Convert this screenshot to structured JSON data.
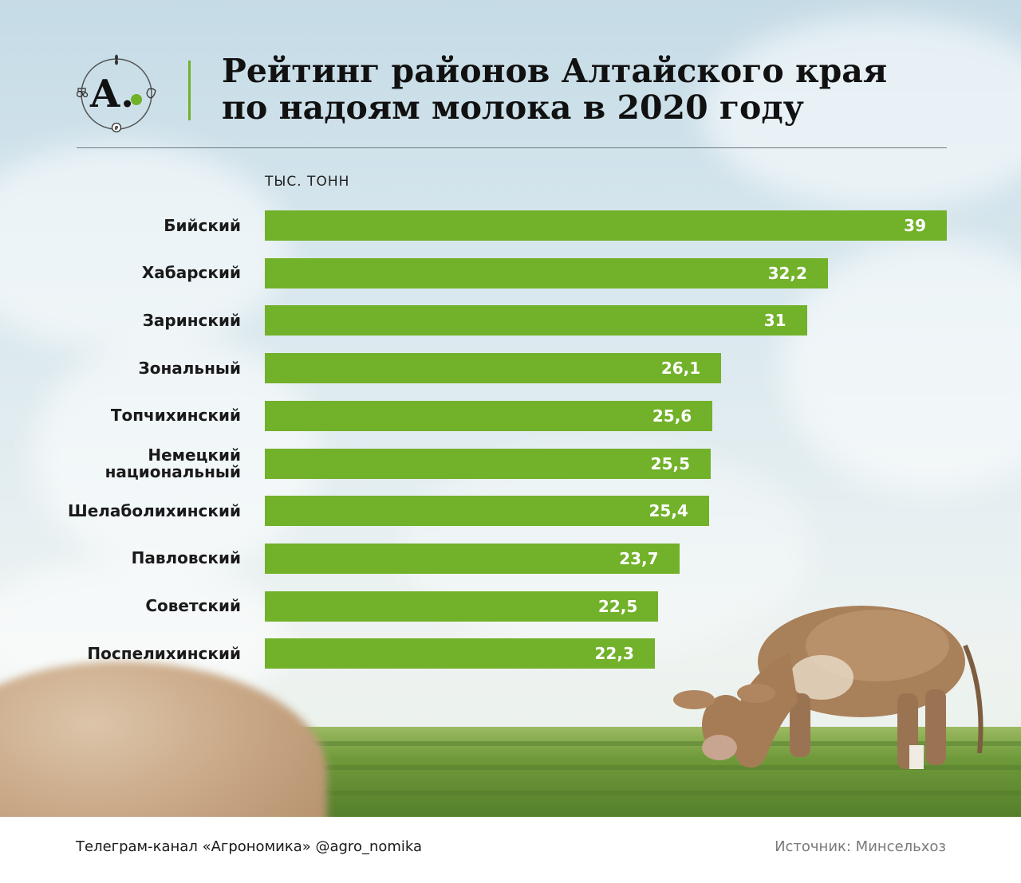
{
  "header": {
    "title_line1": "Рейтинг районов Алтайского края",
    "title_line2": "по надоям молока в 2020 году",
    "logo_letter": "А."
  },
  "chart_data": {
    "type": "bar",
    "orientation": "horizontal",
    "unit_label": "ТЫС. ТОНН",
    "categories": [
      "Бийский",
      "Хабарский",
      "Заринский",
      "Зональный",
      "Топчихинский",
      "Немецкий национальный",
      "Шелаболихинский",
      "Павловский",
      "Советский",
      "Поспелихинский"
    ],
    "values": [
      39,
      32.2,
      31,
      26.1,
      25.6,
      25.5,
      25.4,
      23.7,
      22.5,
      22.3
    ],
    "value_labels": [
      "39",
      "32,2",
      "31",
      "26,1",
      "25,6",
      "25,5",
      "25,4",
      "23,7",
      "22,5",
      "22,3"
    ],
    "xlim": [
      0,
      39
    ],
    "bar_color": "#72b12a"
  },
  "footer": {
    "channel": "Телеграм-канал «Агрономика» @agro_nomika",
    "source": "Источник: Минсельхоз"
  },
  "colors": {
    "accent": "#72b12a",
    "text": "#111111"
  },
  "icons": [
    "logo-emblem-icon",
    "wheat-icon",
    "tractor-icon",
    "cow-head-icon",
    "ruble-icon"
  ]
}
